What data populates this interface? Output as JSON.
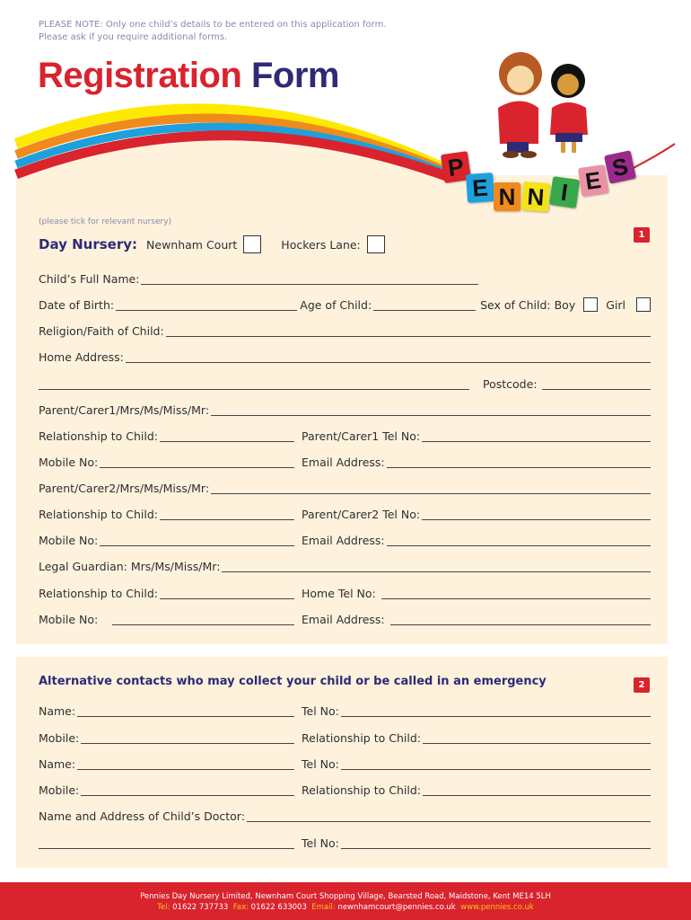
{
  "note": {
    "line1": "PLEASE NOTE: Only one child’s details to be entered on this application form.",
    "line2": "Please ask if you require additional forms."
  },
  "title": {
    "part1": "Registration",
    "part2": "Form"
  },
  "logo": {
    "letters": [
      "P",
      "E",
      "N",
      "N",
      "I",
      "E",
      "S"
    ],
    "colors": [
      "#d9232d",
      "#1ea0dd",
      "#f08a1d",
      "#f5e31a",
      "#38a84a",
      "#ea93a6",
      "#9a2a8c"
    ]
  },
  "section1": {
    "badge": "1",
    "tick_hint": "(please tick for relevant nursery)",
    "day_nursery": "Day Nursery:",
    "newnham": "Newnham Court",
    "hockers": "Hockers Lane:",
    "child_name": "Child’s Full Name:",
    "dob": "Date of Birth:",
    "age": "Age of Child:",
    "sex_boy": "Sex of Child: Boy",
    "girl": "Girl",
    "religion": "Religion/Faith of Child:",
    "home_address": "Home Address:",
    "postcode": "Postcode:",
    "parent1": "Parent/Carer1/Mrs/Ms/Miss/Mr:",
    "relationship": "Relationship to Child:",
    "parent1_tel": "Parent/Carer1 Tel No:",
    "mobile": "Mobile No:",
    "email": "Email Address:",
    "parent2": "Parent/Carer2/Mrs/Ms/Miss/Mr:",
    "parent2_tel": "Parent/Carer2 Tel No:",
    "guardian": "Legal Guardian: Mrs/Ms/Miss/Mr:",
    "home_tel": "Home Tel No:"
  },
  "section2": {
    "badge": "2",
    "heading": "Alternative contacts who may collect your child or be called in an emergency",
    "name": "Name:",
    "tel": "Tel No:",
    "mobile": "Mobile:",
    "relationship": "Relationship to Child:",
    "doctor": "Name and Address of Child’s Doctor:"
  },
  "footer": {
    "address": "Pennies Day Nursery Limited, Newnham Court Shopping Village, Bearsted Road, Maidstone, Kent ME14 5LH",
    "tel_label": "Tel:",
    "tel": "01622 737733",
    "fax_label": "Fax:",
    "fax": "01622 633003",
    "email_label": "Email:",
    "email": "newnhamcourt@pennies.co.uk",
    "web": "www.pennies.co.uk"
  }
}
